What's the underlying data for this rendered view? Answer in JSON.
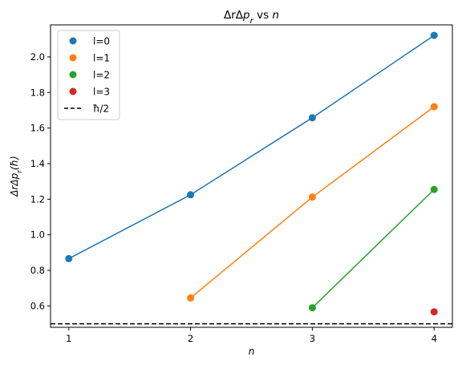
{
  "chart_data": {
    "type": "scatter",
    "title": "ΔrΔp_r vs n",
    "xlabel": "n",
    "ylabel": "ΔrΔp_r(ħ)",
    "xlim": [
      0.85,
      4.15
    ],
    "ylim": [
      0.48,
      2.18
    ],
    "xticks": [
      1,
      2,
      3,
      4
    ],
    "yticks": [
      0.6,
      0.8,
      1.0,
      1.2,
      1.4,
      1.6,
      1.8,
      2.0
    ],
    "ytick_labels": [
      "0.6",
      "0.8",
      "1.0",
      "1.2",
      "1.4",
      "1.6",
      "1.8",
      "2.0"
    ],
    "grid": false,
    "legend_position": "top-left",
    "series": [
      {
        "name": "l=0",
        "color": "#1f77b4",
        "x": [
          1,
          2,
          3,
          4
        ],
        "y": [
          0.866,
          1.225,
          1.658,
          2.121
        ]
      },
      {
        "name": "l=1",
        "color": "#ff7f0e",
        "x": [
          2,
          3,
          4
        ],
        "y": [
          0.645,
          1.212,
          1.72
        ]
      },
      {
        "name": "l=2",
        "color": "#2ca02c",
        "x": [
          3,
          4
        ],
        "y": [
          0.59,
          1.255
        ]
      },
      {
        "name": "l=3",
        "color": "#d62728",
        "x": [
          4
        ],
        "y": [
          0.567
        ]
      }
    ],
    "reference_line": {
      "name": "ħ/2",
      "y": 0.5,
      "color": "#000000",
      "style": "dashed"
    }
  }
}
